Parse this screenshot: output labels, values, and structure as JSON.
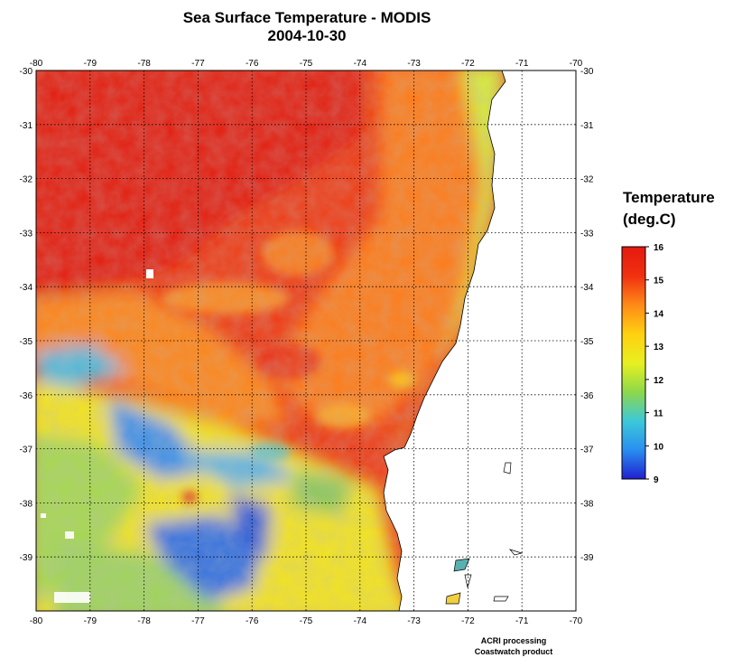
{
  "title": {
    "line1": "Sea Surface Temperature - MODIS",
    "line2": "2004-10-30"
  },
  "map": {
    "longitude_ticks": [
      "-80",
      "-79",
      "-78",
      "-77",
      "-76",
      "-75",
      "-74",
      "-73",
      "-72",
      "-71",
      "-70"
    ],
    "latitude_ticks": [
      "-30",
      "-31",
      "-32",
      "-33",
      "-34",
      "-35",
      "-36",
      "-37",
      "-38",
      "-39"
    ],
    "lon_range": [
      -80,
      -70
    ],
    "lat_range": [
      -30,
      -40
    ],
    "grid": "dotted",
    "land_color": "#ffffff",
    "coastline_color": "#000000"
  },
  "colorbar": {
    "title_line1": "Temperature",
    "title_line2": "(deg.C)",
    "ticks": [
      "16",
      "15",
      "14",
      "13",
      "12",
      "11",
      "10",
      "9"
    ],
    "range": [
      9,
      16
    ],
    "colors": [
      "#2020d0",
      "#2a8ef0",
      "#3cc8d8",
      "#8ed84a",
      "#e8f020",
      "#ffd010",
      "#ff8a18",
      "#f03010",
      "#e41a10"
    ]
  },
  "credits": {
    "line1": "ACRI processing",
    "line2": "Coastwatch product"
  }
}
